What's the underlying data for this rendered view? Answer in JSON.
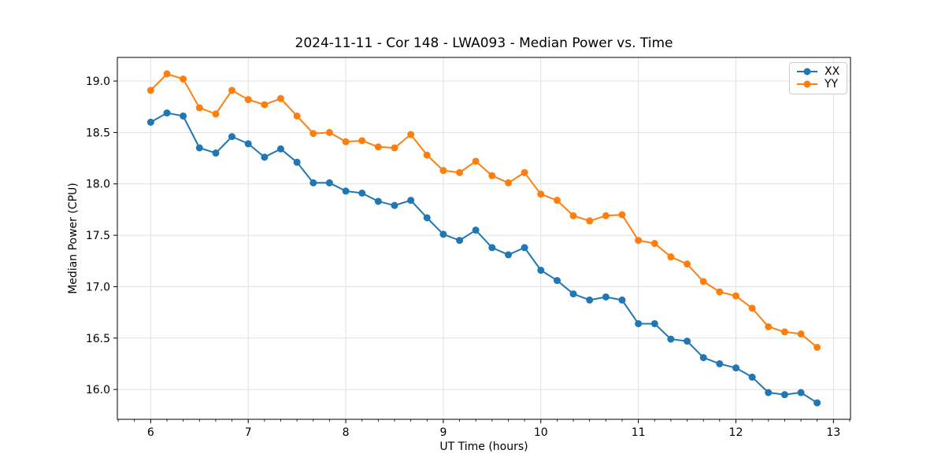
{
  "chart_data": {
    "type": "line",
    "title": "2024-11-11 - Cor 148 - LWA093 - Median Power vs. Time",
    "xlabel": "UT Time (hours)",
    "ylabel": "Median Power (CPU)",
    "xlim": [
      5.658,
      13.175
    ],
    "ylim": [
      15.71,
      19.23
    ],
    "xticks": [
      6,
      7,
      8,
      9,
      10,
      11,
      12,
      13
    ],
    "yticks": [
      16.0,
      16.5,
      17.0,
      17.5,
      18.0,
      18.5,
      19.0
    ],
    "minor_xtick_interval_hours": 0.1667,
    "grid": true,
    "legend_position": "upper right",
    "grid_color": "#e0e0e0",
    "x": [
      6.0,
      6.167,
      6.333,
      6.5,
      6.667,
      6.833,
      7.0,
      7.167,
      7.333,
      7.5,
      7.667,
      7.833,
      8.0,
      8.167,
      8.333,
      8.5,
      8.667,
      8.833,
      9.0,
      9.167,
      9.333,
      9.5,
      9.667,
      9.833,
      10.0,
      10.167,
      10.333,
      10.5,
      10.667,
      10.833,
      11.0,
      11.167,
      11.333,
      11.5,
      11.667,
      11.833,
      12.0,
      12.167,
      12.333,
      12.5,
      12.667,
      12.833
    ],
    "series": [
      {
        "name": "XX",
        "color": "#1f77b4",
        "values": [
          18.6,
          18.69,
          18.66,
          18.35,
          18.3,
          18.46,
          18.39,
          18.26,
          18.34,
          18.21,
          18.01,
          18.01,
          17.93,
          17.91,
          17.83,
          17.79,
          17.84,
          17.67,
          17.51,
          17.45,
          17.55,
          17.38,
          17.31,
          17.38,
          17.16,
          17.06,
          16.93,
          16.87,
          16.9,
          16.87,
          16.64,
          16.64,
          16.49,
          16.47,
          16.31,
          16.25,
          16.21,
          16.12,
          15.97,
          15.95,
          15.97,
          15.87
        ]
      },
      {
        "name": "YY",
        "color": "#ff7f0e",
        "values": [
          18.91,
          19.07,
          19.02,
          18.74,
          18.68,
          18.91,
          18.82,
          18.77,
          18.83,
          18.66,
          18.49,
          18.5,
          18.41,
          18.42,
          18.36,
          18.35,
          18.48,
          18.28,
          18.13,
          18.11,
          18.22,
          18.08,
          18.01,
          18.11,
          17.9,
          17.84,
          17.69,
          17.64,
          17.69,
          17.7,
          17.45,
          17.42,
          17.29,
          17.22,
          17.05,
          16.95,
          16.91,
          16.79,
          16.61,
          16.56,
          16.54,
          16.41
        ]
      }
    ]
  }
}
